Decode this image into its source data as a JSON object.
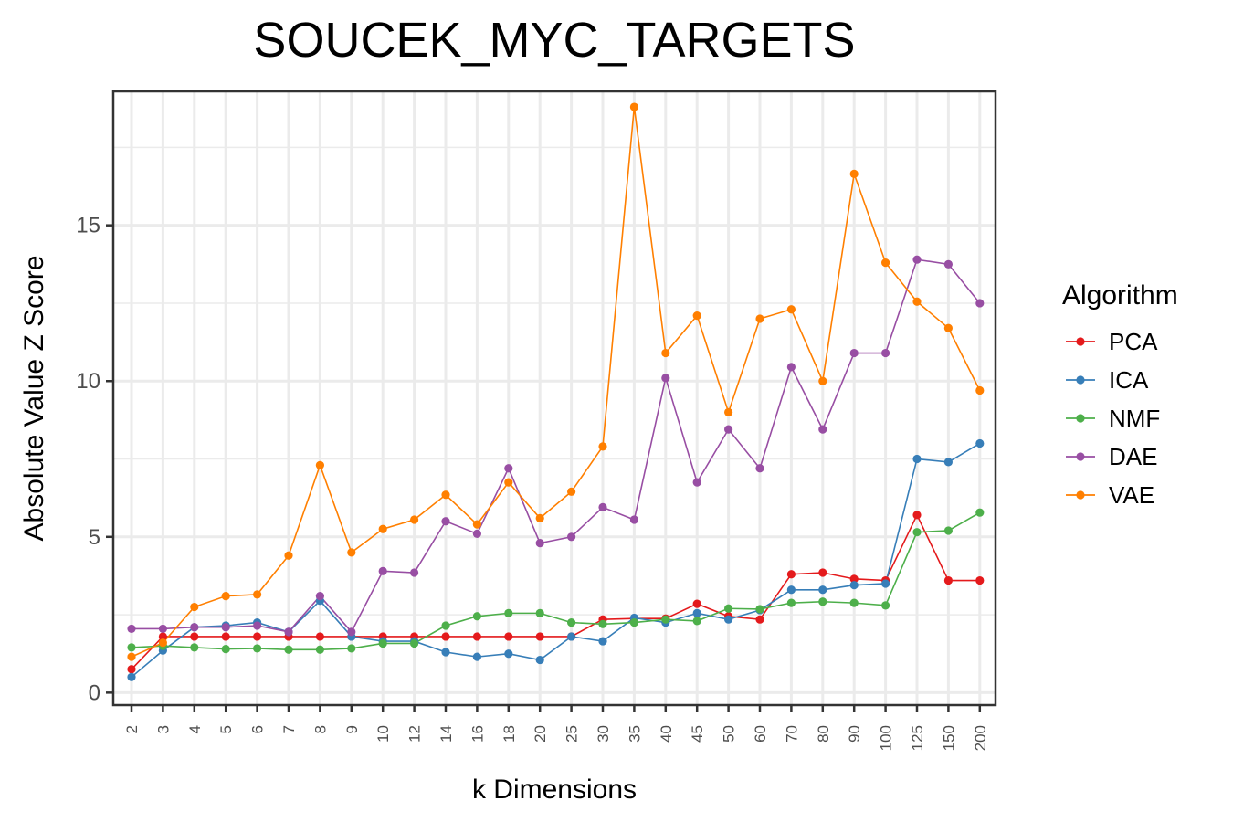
{
  "chart_data": {
    "type": "line",
    "title": "SOUCEK_MYC_TARGETS",
    "xlabel": "k Dimensions",
    "ylabel": "Absolute Value Z Score",
    "categories": [
      "2",
      "3",
      "4",
      "5",
      "6",
      "7",
      "8",
      "9",
      "10",
      "12",
      "14",
      "16",
      "18",
      "20",
      "25",
      "30",
      "35",
      "40",
      "45",
      "50",
      "60",
      "70",
      "80",
      "90",
      "100",
      "125",
      "150",
      "200"
    ],
    "ylim": [
      -0.4,
      19.3
    ],
    "yticks": [
      0,
      5,
      10,
      15
    ],
    "yticks_labels": [
      "0",
      "5",
      "10",
      "15"
    ],
    "grid": true,
    "legend": {
      "title": "Algorithm",
      "position": "right"
    },
    "series": [
      {
        "name": "PCA",
        "color": "#E41A1C",
        "values": [
          0.75,
          1.8,
          1.8,
          1.8,
          1.8,
          1.8,
          1.8,
          1.8,
          1.8,
          1.8,
          1.8,
          1.8,
          1.8,
          1.8,
          1.8,
          2.35,
          2.38,
          2.38,
          2.85,
          2.45,
          2.35,
          3.8,
          3.85,
          3.65,
          3.6,
          5.7,
          3.6,
          3.6
        ]
      },
      {
        "name": "ICA",
        "color": "#377EB8",
        "values": [
          0.5,
          1.35,
          2.1,
          2.15,
          2.25,
          1.95,
          2.95,
          1.8,
          1.65,
          1.65,
          1.3,
          1.15,
          1.25,
          1.05,
          1.8,
          1.65,
          2.4,
          2.25,
          2.55,
          2.35,
          2.65,
          3.3,
          3.3,
          3.45,
          3.5,
          7.5,
          7.4,
          8.0
        ]
      },
      {
        "name": "NMF",
        "color": "#4DAF4A",
        "values": [
          1.45,
          1.5,
          1.45,
          1.4,
          1.42,
          1.38,
          1.38,
          1.42,
          1.58,
          1.58,
          2.15,
          2.45,
          2.55,
          2.55,
          2.25,
          2.2,
          2.25,
          2.35,
          2.3,
          2.7,
          2.68,
          2.88,
          2.92,
          2.88,
          2.8,
          5.15,
          5.2,
          5.78
        ]
      },
      {
        "name": "DAE",
        "color": "#984EA3",
        "values": [
          2.05,
          2.05,
          2.1,
          2.1,
          2.15,
          1.95,
          3.1,
          1.95,
          3.9,
          3.85,
          5.5,
          5.1,
          7.2,
          4.8,
          5.0,
          5.95,
          5.55,
          10.1,
          6.75,
          8.45,
          7.2,
          10.45,
          8.45,
          10.9,
          10.9,
          13.9,
          13.75,
          12.5
        ]
      },
      {
        "name": "VAE",
        "color": "#FF7F00",
        "values": [
          1.15,
          1.6,
          2.75,
          3.1,
          3.15,
          4.4,
          7.3,
          4.5,
          5.25,
          5.55,
          6.35,
          5.4,
          6.75,
          5.6,
          6.45,
          7.9,
          18.8,
          10.9,
          12.1,
          9.0,
          12.0,
          12.3,
          10.0,
          16.65,
          13.8,
          12.55,
          11.7,
          9.7
        ]
      }
    ]
  }
}
